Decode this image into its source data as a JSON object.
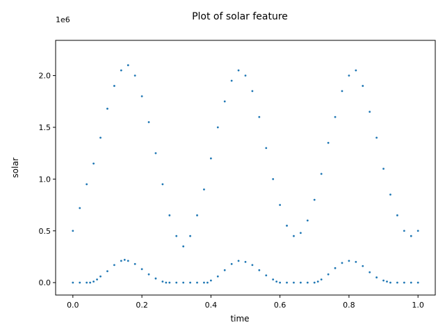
{
  "chart_data": {
    "type": "scatter",
    "title": "Plot of solar feature",
    "xlabel": "time",
    "ylabel": "solar",
    "y_offset_label": "1e6",
    "xlim": [
      -0.05,
      1.05
    ],
    "ylim": [
      -0.12,
      2.34
    ],
    "xticks": [
      0.0,
      0.2,
      0.4,
      0.6,
      0.8,
      1.0
    ],
    "xtick_labels": [
      "0.0",
      "0.2",
      "0.4",
      "0.6",
      "0.8",
      "1.0"
    ],
    "yticks": [
      0.0,
      0.5,
      1.0,
      1.5,
      2.0
    ],
    "ytick_labels": [
      "0.0",
      "0.5",
      "1.0",
      "1.5",
      "2.0"
    ],
    "grid": false,
    "marker_color": "#1f77b4",
    "series": [
      {
        "values_unit": "1e6",
        "x": [
          0.0,
          0.02,
          0.04,
          0.06,
          0.08,
          0.1,
          0.12,
          0.14,
          0.16,
          0.18,
          0.2,
          0.22,
          0.24,
          0.26,
          0.28,
          0.3,
          0.32,
          0.34,
          0.36,
          0.38,
          0.4,
          0.42,
          0.44,
          0.46,
          0.48,
          0.5,
          0.52,
          0.54,
          0.56,
          0.58,
          0.6,
          0.62,
          0.64,
          0.66,
          0.68,
          0.7,
          0.72,
          0.74,
          0.76,
          0.78,
          0.8,
          0.82,
          0.84,
          0.86,
          0.88,
          0.9,
          0.92,
          0.94,
          0.96,
          0.98,
          1.0
        ],
        "y": [
          0.5,
          0.72,
          0.95,
          1.15,
          1.4,
          1.68,
          1.9,
          2.05,
          2.1,
          2.0,
          1.8,
          1.55,
          1.25,
          0.95,
          0.65,
          0.45,
          0.35,
          0.45,
          0.65,
          0.9,
          1.2,
          1.5,
          1.75,
          1.95,
          2.05,
          2.0,
          1.85,
          1.6,
          1.3,
          1.0,
          0.75,
          0.55,
          0.45,
          0.48,
          0.6,
          0.8,
          1.05,
          1.35,
          1.6,
          1.85,
          2.0,
          2.05,
          1.9,
          1.65,
          1.4,
          1.1,
          0.85,
          0.65,
          0.5,
          0.45,
          0.5
        ]
      },
      {
        "values_unit": "1e6",
        "x": [
          0.0,
          0.02,
          0.04,
          0.05,
          0.06,
          0.07,
          0.08,
          0.1,
          0.12,
          0.14,
          0.15,
          0.16,
          0.18,
          0.2,
          0.22,
          0.24,
          0.26,
          0.27,
          0.28,
          0.3,
          0.32,
          0.34,
          0.36,
          0.38,
          0.39,
          0.4,
          0.42,
          0.44,
          0.46,
          0.48,
          0.5,
          0.52,
          0.54,
          0.56,
          0.58,
          0.59,
          0.6,
          0.62,
          0.64,
          0.66,
          0.68,
          0.7,
          0.71,
          0.72,
          0.74,
          0.76,
          0.78,
          0.8,
          0.82,
          0.84,
          0.86,
          0.88,
          0.9,
          0.91,
          0.92,
          0.94,
          0.96,
          0.98,
          1.0
        ],
        "y": [
          0.0,
          0.0,
          0.0,
          0.0,
          0.01,
          0.03,
          0.06,
          0.11,
          0.17,
          0.21,
          0.22,
          0.21,
          0.18,
          0.13,
          0.08,
          0.04,
          0.01,
          0.0,
          0.0,
          0.0,
          0.0,
          0.0,
          0.0,
          0.0,
          0.0,
          0.02,
          0.06,
          0.12,
          0.18,
          0.21,
          0.2,
          0.17,
          0.12,
          0.07,
          0.03,
          0.01,
          0.0,
          0.0,
          0.0,
          0.0,
          0.0,
          0.0,
          0.01,
          0.03,
          0.08,
          0.14,
          0.19,
          0.21,
          0.2,
          0.16,
          0.1,
          0.05,
          0.02,
          0.01,
          0.0,
          0.0,
          0.0,
          0.0,
          0.0
        ]
      }
    ]
  }
}
